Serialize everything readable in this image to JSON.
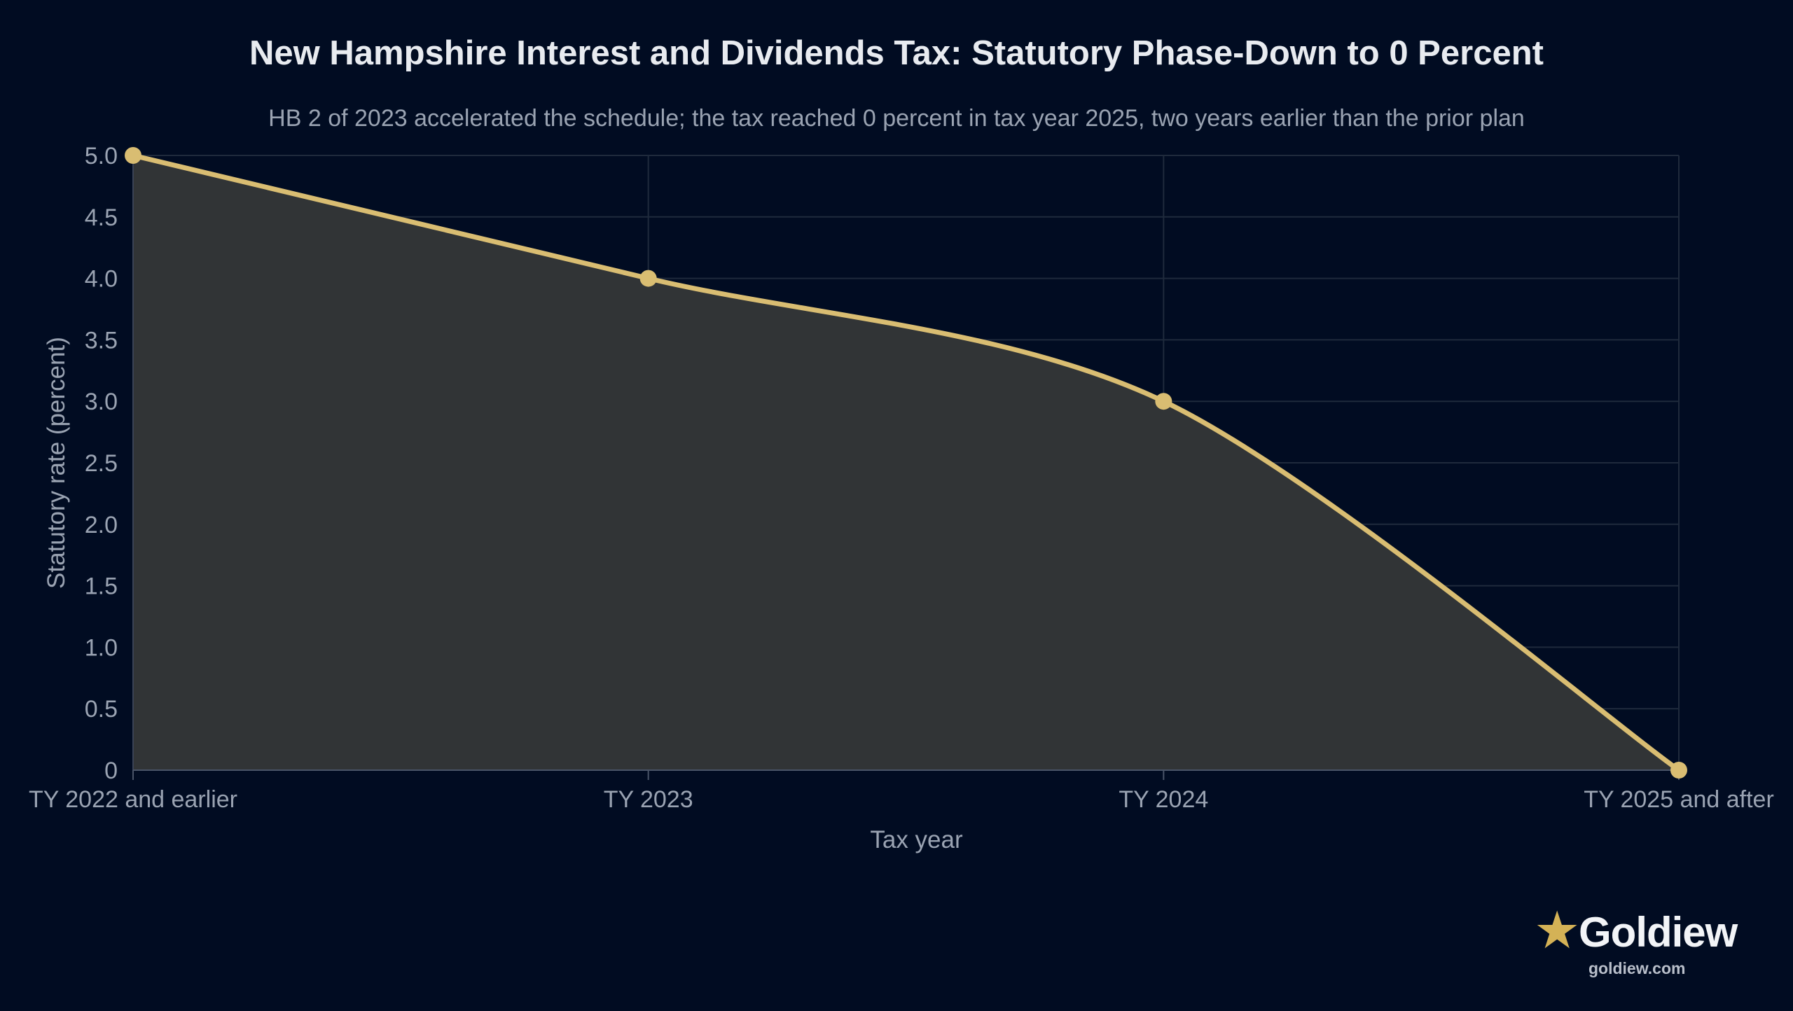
{
  "chart_data": {
    "type": "area",
    "title": "New Hampshire Interest and Dividends Tax: Statutory Phase-Down to 0 Percent",
    "subtitle": "HB 2 of 2023 accelerated the schedule; the tax reached 0 percent in tax year 2025, two years earlier than the prior plan",
    "xlabel": "Tax year",
    "ylabel": "Statutory rate (percent)",
    "categories": [
      "TY 2022 and earlier",
      "TY 2023",
      "TY 2024",
      "TY 2025 and after"
    ],
    "values": [
      5.0,
      4.0,
      3.0,
      0
    ],
    "ylim": [
      0,
      5
    ],
    "yticks": [
      "0",
      "0.5",
      "1.0",
      "1.5",
      "2.0",
      "2.5",
      "3.0",
      "3.5",
      "4.0",
      "4.5",
      "5.0"
    ],
    "grid": true,
    "colors": {
      "line": "#d9bd72",
      "fill": "#313436",
      "background": "#010c22",
      "grid": "#1f2a3c",
      "text": "#9aa3b2"
    }
  },
  "brand": {
    "icon": "star-icon",
    "name": "Goldiew",
    "url": "goldiew.com"
  }
}
